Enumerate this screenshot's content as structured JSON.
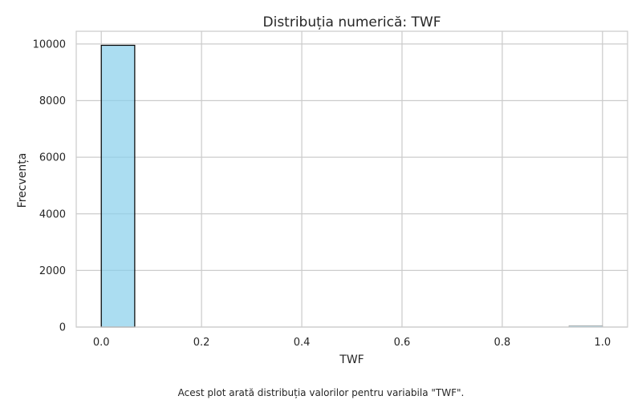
{
  "chart_data": {
    "type": "bar",
    "title": "Distribuția numerică: TWF",
    "xlabel": "TWF",
    "ylabel": "Frecvența",
    "xlim": [
      -0.05,
      1.05
    ],
    "ylim": [
      0,
      10450
    ],
    "xticks": [
      "0.0",
      "0.2",
      "0.4",
      "0.6",
      "0.8",
      "1.0"
    ],
    "yticks": [
      "0",
      "2000",
      "4000",
      "6000",
      "8000",
      "10000"
    ],
    "grid": true,
    "bins": [
      {
        "x0": 0.0,
        "x1": 0.0667,
        "count": 9954
      },
      {
        "x0": 0.0667,
        "x1": 0.1333,
        "count": 0
      },
      {
        "x0": 0.1333,
        "x1": 0.2,
        "count": 0
      },
      {
        "x0": 0.2,
        "x1": 0.2667,
        "count": 0
      },
      {
        "x0": 0.2667,
        "x1": 0.3333,
        "count": 0
      },
      {
        "x0": 0.3333,
        "x1": 0.4,
        "count": 0
      },
      {
        "x0": 0.4,
        "x1": 0.4667,
        "count": 0
      },
      {
        "x0": 0.4667,
        "x1": 0.5333,
        "count": 0
      },
      {
        "x0": 0.5333,
        "x1": 0.6,
        "count": 0
      },
      {
        "x0": 0.6,
        "x1": 0.6667,
        "count": 0
      },
      {
        "x0": 0.6667,
        "x1": 0.7333,
        "count": 0
      },
      {
        "x0": 0.7333,
        "x1": 0.8,
        "count": 0
      },
      {
        "x0": 0.8,
        "x1": 0.8667,
        "count": 0
      },
      {
        "x0": 0.8667,
        "x1": 0.9333,
        "count": 0
      },
      {
        "x0": 0.9333,
        "x1": 1.0,
        "count": 46
      }
    ],
    "bar_color": "#87ceeb",
    "edge_color": "#000000"
  },
  "caption": "Acest plot arată distribuția valorilor pentru variabila \"TWF\"."
}
